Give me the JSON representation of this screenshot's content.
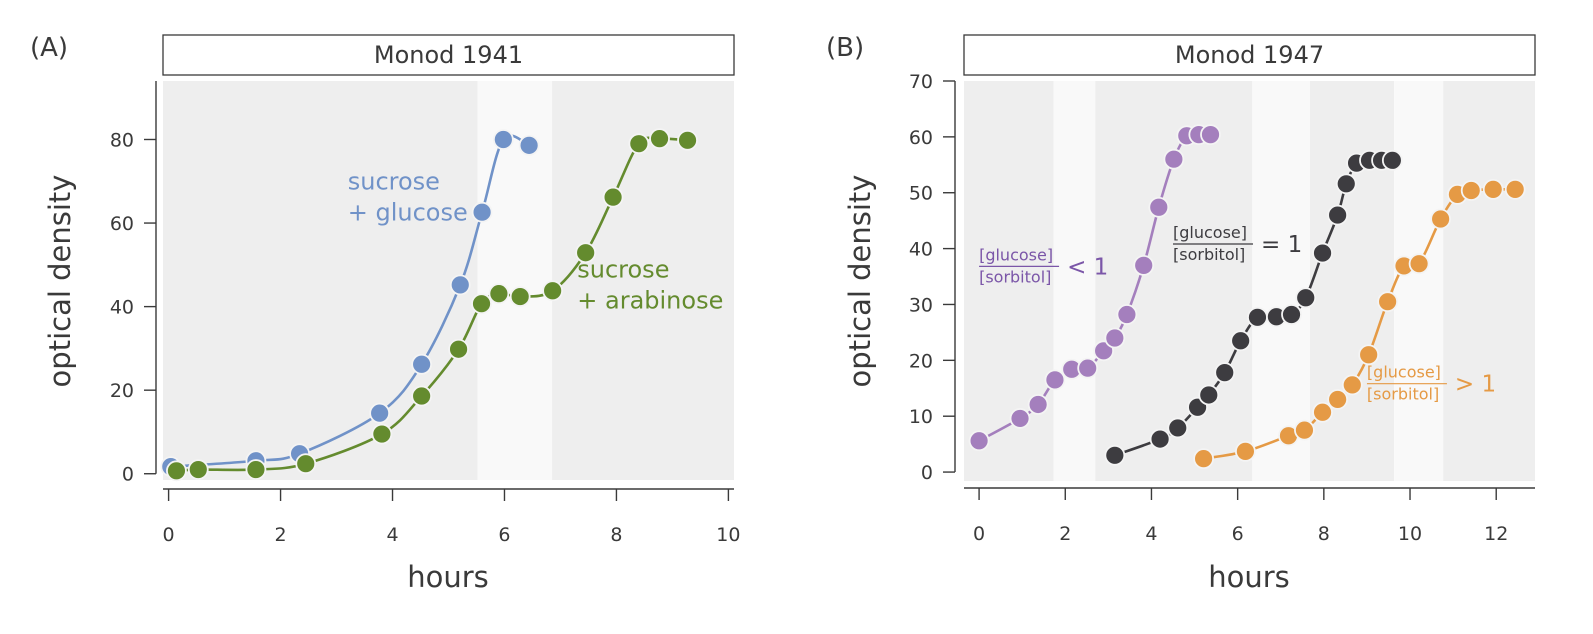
{
  "chart_data": [
    {
      "type": "line",
      "panel_label": "(A)",
      "title": "Monod 1941",
      "xlabel": "hours",
      "ylabel": "optical density",
      "xlim": [
        -0.1,
        10.1
      ],
      "ylim": [
        -1.5,
        94
      ],
      "xticks": [
        0,
        2,
        4,
        6,
        8,
        10
      ],
      "yticks": [
        0,
        20,
        40,
        60,
        80
      ],
      "grid": false,
      "background_bands": [
        {
          "from": -0.1,
          "to": 5.52,
          "shade": "dark"
        },
        {
          "from": 5.52,
          "to": 6.85,
          "shade": "light"
        },
        {
          "from": 6.85,
          "to": 10.1,
          "shade": "dark"
        }
      ],
      "series": [
        {
          "name": "sucrose + glucose",
          "label_lines": [
            "sucrose",
            "+ glucose"
          ],
          "color": "#7092c8",
          "label_pos": [
            3.2,
            68
          ],
          "x": [
            0.04,
            1.56,
            2.34,
            3.77,
            4.52,
            5.21,
            5.6,
            5.98,
            6.44
          ],
          "y": [
            1.7,
            3.1,
            4.8,
            14.5,
            26.2,
            45.2,
            62.6,
            80.0,
            78.6
          ]
        },
        {
          "name": "sucrose + arabinose",
          "label_lines": [
            "sucrose",
            "+ arabinose"
          ],
          "color": "#648b2e",
          "label_pos": [
            7.3,
            47
          ],
          "x": [
            0.14,
            0.53,
            1.56,
            2.45,
            3.81,
            4.52,
            5.18,
            5.59,
            5.9,
            6.28,
            6.86,
            7.45,
            7.94,
            8.4,
            8.77,
            9.27
          ],
          "y": [
            0.7,
            1.0,
            1.0,
            2.4,
            9.5,
            18.6,
            29.8,
            40.7,
            43.1,
            42.4,
            43.8,
            52.9,
            66.2,
            79.0,
            80.2,
            79.8
          ]
        }
      ]
    },
    {
      "type": "line",
      "panel_label": "(B)",
      "title": "Monod 1947",
      "xlabel": "hours",
      "ylabel": "optical density",
      "xlim": [
        -0.35,
        12.9
      ],
      "ylim": [
        -1.6,
        70
      ],
      "xticks": [
        0,
        2,
        4,
        6,
        8,
        10,
        12
      ],
      "yticks": [
        0,
        10,
        20,
        30,
        40,
        50,
        60,
        70
      ],
      "grid": false,
      "background_bands": [
        {
          "from": -0.35,
          "to": 1.73,
          "shade": "dark"
        },
        {
          "from": 1.73,
          "to": 2.7,
          "shade": "light"
        },
        {
          "from": 2.7,
          "to": 6.34,
          "shade": "dark"
        },
        {
          "from": 6.34,
          "to": 7.68,
          "shade": "light"
        },
        {
          "from": 7.68,
          "to": 9.63,
          "shade": "dark"
        },
        {
          "from": 9.63,
          "to": 10.77,
          "shade": "light"
        },
        {
          "from": 10.77,
          "to": 12.9,
          "shade": "dark"
        }
      ],
      "series": [
        {
          "name": "[glucose]/[sorbitol] < 1",
          "numerator": "[glucose]",
          "denominator": "[sorbitol]",
          "relation": "< 1",
          "color": "#a47fbd",
          "text_color": "#7b56a8",
          "label_pos": [
            0.0,
            37
          ],
          "x": [
            0.0,
            0.95,
            1.37,
            1.76,
            2.15,
            2.52,
            2.89,
            3.15,
            3.43,
            3.82,
            4.17,
            4.52,
            4.82,
            5.1,
            5.37
          ],
          "y": [
            5.6,
            9.6,
            12.1,
            16.5,
            18.4,
            18.6,
            21.7,
            24.0,
            28.2,
            37.0,
            47.4,
            56.0,
            60.2,
            60.4,
            60.4
          ]
        },
        {
          "name": "[glucose]/[sorbitol] = 1",
          "numerator": "[glucose]",
          "denominator": "[sorbitol]",
          "relation": "= 1",
          "color": "#3d3c40",
          "text_color": "#3d3c40",
          "label_pos": [
            4.5,
            41
          ],
          "x": [
            3.15,
            4.2,
            4.61,
            5.07,
            5.33,
            5.7,
            6.07,
            6.46,
            6.9,
            7.25,
            7.58,
            7.97,
            8.32,
            8.52,
            8.76,
            9.06,
            9.34,
            9.59
          ],
          "y": [
            3.0,
            5.9,
            7.9,
            11.6,
            13.8,
            17.8,
            23.5,
            27.7,
            27.8,
            28.2,
            31.2,
            39.2,
            46.0,
            51.6,
            55.3,
            55.8,
            55.8,
            55.8
          ]
        },
        {
          "name": "[glucose]/[sorbitol] > 1",
          "numerator": "[glucose]",
          "denominator": "[sorbitol]",
          "relation": "> 1",
          "color": "#e59a45",
          "text_color": "#e59a45",
          "label_pos": [
            9.0,
            16
          ],
          "x": [
            5.21,
            6.18,
            7.18,
            7.55,
            7.97,
            8.32,
            8.66,
            9.04,
            9.48,
            9.86,
            10.21,
            10.71,
            11.1,
            11.42,
            11.93,
            12.44
          ],
          "y": [
            2.4,
            3.7,
            6.5,
            7.5,
            10.7,
            13.0,
            15.6,
            21.0,
            30.5,
            36.9,
            37.3,
            45.3,
            49.7,
            50.4,
            50.6,
            50.6
          ]
        }
      ]
    }
  ],
  "colors": {
    "band_dark": "#eeeeee",
    "band_light": "#f9f9f9",
    "axis": "#3a3a3a",
    "text": "#3a3a3a",
    "marker_outline": "#f4f4f4"
  }
}
